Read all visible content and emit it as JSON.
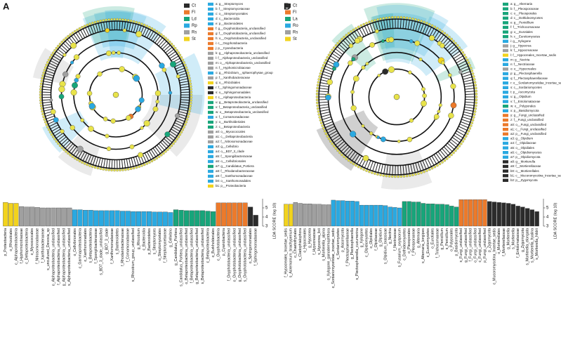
{
  "chart_data": [
    {
      "type": "bar",
      "panel": "A",
      "ylabel": "LDA SCORE (log 10)",
      "ylim": [
        3,
        6
      ],
      "yticks": [
        3,
        4,
        5
      ],
      "groups": [
        {
          "name": "Ct",
          "color": "#2b2b2b"
        },
        {
          "name": "Fl",
          "color": "#ec7a2b"
        },
        {
          "name": "Ld",
          "color": "#17a57a"
        },
        {
          "name": "Rp",
          "color": "#2aa9e1"
        },
        {
          "name": "Rs",
          "color": "#a0a0a0"
        },
        {
          "name": "St",
          "color": "#f2d31c"
        }
      ],
      "taxa": [
        {
          "label": "a: g__Streptomyces",
          "color": "#2aa9e1"
        },
        {
          "label": "b: f__Streptomycetaceae",
          "color": "#2aa9e1"
        },
        {
          "label": "c: o__Streptomycetales",
          "color": "#2aa9e1"
        },
        {
          "label": "d: c__Bacteroidia",
          "color": "#2aa9e1"
        },
        {
          "label": "e: p__Bacteroidetes",
          "color": "#2aa9e1"
        },
        {
          "label": "f: g__Oxyphotobacteria_unclassified",
          "color": "#ec7a2b"
        },
        {
          "label": "g: f__Oxyphotobacteria_unclassified",
          "color": "#ec7a2b"
        },
        {
          "label": "h: o__Oxyphotobacteria_unclassified",
          "color": "#ec7a2b"
        },
        {
          "label": "i: c__Oxyphotobacteria",
          "color": "#ec7a2b"
        },
        {
          "label": "j: p__Cyanobacteria",
          "color": "#ec7a2b"
        },
        {
          "label": "k: g__Alphaproteobacteria_unclassified",
          "color": "#a0a0a0"
        },
        {
          "label": "l: f__Alphaproteobacteria_unclassified",
          "color": "#a0a0a0"
        },
        {
          "label": "m: o__Alphaproteobacteria_unclassified",
          "color": "#a0a0a0"
        },
        {
          "label": "n: f__Hyphomicrobiaceae",
          "color": "#a0a0a0"
        },
        {
          "label": "o: g__Rhizobium__sphaerophysae_group",
          "color": "#2aa9e1"
        },
        {
          "label": "p: f__Xanthobacteraceae",
          "color": "#a0a0a0"
        },
        {
          "label": "q: o__Rhizobiales",
          "color": "#f2d31c"
        },
        {
          "label": "r: f__Sphingomonadaceae",
          "color": "#2b2b2b"
        },
        {
          "label": "s: o__Sphingomonadales",
          "color": "#2b2b2b"
        },
        {
          "label": "t: c__Alphaproteobacteria",
          "color": "#f2d31c"
        },
        {
          "label": "u: g__Betaproteobacteria_unclassified",
          "color": "#17a57a"
        },
        {
          "label": "v: f__Betaproteobacteria_unclassified",
          "color": "#17a57a"
        },
        {
          "label": "w: o__Betaproteobacteria_unclassified",
          "color": "#17a57a"
        },
        {
          "label": "x: f__Comamonadaceae",
          "color": "#2aa9e1"
        },
        {
          "label": "y: o__Burkholderiales",
          "color": "#17a57a"
        },
        {
          "label": "z: c__Betaproteobacteria",
          "color": "#17a57a"
        },
        {
          "label": "a0: o__Myxococcales",
          "color": "#a0a0a0"
        },
        {
          "label": "a1: c__Deltaproteobacteria",
          "color": "#a0a0a0"
        },
        {
          "label": "a2: f__Nitrosomonadaceae",
          "color": "#a0a0a0"
        },
        {
          "label": "a3: g__Cellvibrio",
          "color": "#2aa9e1"
        },
        {
          "label": "a4: o__BD7_3_clade",
          "color": "#2aa9e1"
        },
        {
          "label": "a5: f__Spongiibacteraceae",
          "color": "#2aa9e1"
        },
        {
          "label": "a6: o__Cellvibrionales",
          "color": "#2aa9e1"
        },
        {
          "label": "a7: g__Candidatus_Portiera",
          "color": "#17a57a"
        },
        {
          "label": "a8: f__Rhodanobacteraceae",
          "color": "#2aa9e1"
        },
        {
          "label": "a9: f__Xanthomonadaceae",
          "color": "#2aa9e1"
        },
        {
          "label": "b0: o__Xanthomonadales",
          "color": "#2aa9e1"
        },
        {
          "label": "b1: p__Proteobacteria",
          "color": "#f2d31c"
        }
      ],
      "categories": [
        "p_Proteobacteria",
        "o_Rhizobiales",
        "c_Alphaproteobacteria",
        "f_Hyphomicrobiaceae",
        "c_Deltaproteobacteria",
        "o_Myxococcales",
        "f_Nitrosomonadaceae",
        "f_Xanthobacteraceae",
        "s_uncultured_Devosia_sp",
        "o_Alphaproteobacteria_unclassified",
        "f_Alphaproteobacteria_unclassified",
        "g_Alphaproteobacteria_unclassified",
        "s_Alphaproteobacteria_unclassified",
        "o_Cellvibrionales",
        "c_Gammaproteobacteria",
        "o_Xanthomonadales",
        "s_Betaproteobacteria",
        "f_Spongiibacteraceae",
        "s_BD7_3_clade_unclassified",
        "g_BD7_3_clade",
        "f_Xanthomonadaceae",
        "s_Bacteroidetes",
        "f_Rhodanobacteraceae",
        "f_Comamonadaceae",
        "s_Rhizobium_group_unclassified",
        "g_Rhizobium",
        "c_Bacteroidia",
        "p_Bacteroidetes",
        "s_Streptomyces",
        "o_Streptomycetales",
        "f_Streptomycetaceae",
        "g_Cellvibrio",
        "g_Candidatus_Portiera",
        "s_Candidatus_Portiera_unclassified",
        "o_Betaproteobacteria_unclassified",
        "f_Betaproteobacteria_unclassified",
        "g_Betaproteobacteria_unclassified",
        "s_Betaproteobacteria_unclassified",
        "c_Betaproteobacteria",
        "o_Burkholderiales",
        "c_Oxyphotobacteria",
        "p_Cyanobacteria",
        "f_Oxyphotobacteria_unclassified",
        "o_Oxyphotobacteria_unclassified",
        "g_Oxyphotobacteria_unclassified",
        "s_Oxyphotobacteria_unclassified",
        "o_Sphingomonadales",
        "f_Sphingomonadaceae"
      ],
      "values": [
        5.6,
        5.5,
        5.5,
        5.15,
        5.1,
        5.1,
        5.05,
        5.0,
        5.0,
        5.0,
        5.0,
        5.0,
        5.0,
        4.8,
        4.8,
        4.75,
        4.75,
        4.7,
        4.7,
        4.7,
        4.7,
        4.7,
        4.65,
        4.65,
        4.6,
        4.6,
        4.6,
        4.6,
        4.55,
        4.55,
        4.55,
        4.5,
        4.8,
        4.75,
        4.7,
        4.7,
        4.7,
        4.7,
        4.65,
        4.6,
        5.55,
        5.55,
        5.55,
        5.55,
        5.55,
        5.55,
        5.1,
        4.2
      ],
      "colors": [
        "#f2d31c",
        "#f2d31c",
        "#f2d31c",
        "#a0a0a0",
        "#a0a0a0",
        "#a0a0a0",
        "#a0a0a0",
        "#a0a0a0",
        "#a0a0a0",
        "#a0a0a0",
        "#a0a0a0",
        "#a0a0a0",
        "#a0a0a0",
        "#2aa9e1",
        "#2aa9e1",
        "#2aa9e1",
        "#2aa9e1",
        "#2aa9e1",
        "#2aa9e1",
        "#2aa9e1",
        "#2aa9e1",
        "#2aa9e1",
        "#2aa9e1",
        "#2aa9e1",
        "#2aa9e1",
        "#2aa9e1",
        "#2aa9e1",
        "#2aa9e1",
        "#2aa9e1",
        "#2aa9e1",
        "#2aa9e1",
        "#2aa9e1",
        "#17a57a",
        "#17a57a",
        "#17a57a",
        "#17a57a",
        "#17a57a",
        "#17a57a",
        "#17a57a",
        "#17a57a",
        "#ec7a2b",
        "#ec7a2b",
        "#ec7a2b",
        "#ec7a2b",
        "#ec7a2b",
        "#ec7a2b",
        "#2b2b2b",
        "#2b2b2b"
      ]
    },
    {
      "type": "bar",
      "panel": "B",
      "ylabel": "LDA SCORE (log 10)",
      "ylim": [
        3,
        6
      ],
      "yticks": [
        3,
        4,
        5
      ],
      "groups": [
        {
          "name": "Ct",
          "color": "#2b2b2b"
        },
        {
          "name": "Fl",
          "color": "#ec7a2b"
        },
        {
          "name": "La",
          "color": "#17a57a"
        },
        {
          "name": "Ro",
          "color": "#2aa9e1"
        },
        {
          "name": "Rs",
          "color": "#a0a0a0"
        },
        {
          "name": "St",
          "color": "#f2d31c"
        }
      ],
      "taxa": [
        {
          "label": "a: g__Alternaria",
          "color": "#17a57a"
        },
        {
          "label": "b: f__Pleosporaceae",
          "color": "#17a57a"
        },
        {
          "label": "c: o__Pleosporales",
          "color": "#17a57a"
        },
        {
          "label": "d: c__Dothideomycetes",
          "color": "#17a57a"
        },
        {
          "label": "e: g__Penicillium",
          "color": "#17a57a"
        },
        {
          "label": "f: f__Trichocomaceae",
          "color": "#17a57a"
        },
        {
          "label": "g: o__Eurotiales",
          "color": "#17a57a"
        },
        {
          "label": "h: c__Eurotiomycetes",
          "color": "#17a57a"
        },
        {
          "label": "i: g__Xylogone",
          "color": "#2aa9e1"
        },
        {
          "label": "j: g__Hypocrea",
          "color": "#a0a0a0"
        },
        {
          "label": "k: f__Hypocreaceae",
          "color": "#a0a0a0"
        },
        {
          "label": "l: f__Hypocreales_Incertae_sedis",
          "color": "#f2d31c"
        },
        {
          "label": "m: g__Nectria",
          "color": "#2aa9e1"
        },
        {
          "label": "n: f__Nectriaceae",
          "color": "#2aa9e1"
        },
        {
          "label": "o: o__Hypocreales",
          "color": "#a0a0a0"
        },
        {
          "label": "p: g__Plectosphaerella",
          "color": "#2aa9e1"
        },
        {
          "label": "q: f__Plectosphaerellaceae",
          "color": "#2aa9e1"
        },
        {
          "label": "r: o__Sordariomycetidae_incertae_sedis",
          "color": "#2aa9e1"
        },
        {
          "label": "s: c__Sordariomycetes",
          "color": "#2aa9e1"
        },
        {
          "label": "t: p__Ascomycota",
          "color": "#2aa9e1"
        },
        {
          "label": "u: g__Olpidium",
          "color": "#2aa9e1"
        },
        {
          "label": "v: f__Entolomataceae",
          "color": "#2aa9e1"
        },
        {
          "label": "w: o__Polyporales",
          "color": "#17a57a"
        },
        {
          "label": "x: p__Basidiomycota",
          "color": "#2aa9e1"
        },
        {
          "label": "y: g__Fungi_unclassified",
          "color": "#ec7a2b"
        },
        {
          "label": "z: f__Fungi_unclassified",
          "color": "#ec7a2b"
        },
        {
          "label": "a0: o__Fungi_unclassified",
          "color": "#ec7a2b"
        },
        {
          "label": "a1: c__Fungi_unclassified",
          "color": "#ec7a2b"
        },
        {
          "label": "a2: p__Fungi_unclassified",
          "color": "#ec7a2b"
        },
        {
          "label": "a3: g__Olpidium",
          "color": "#2aa9e1"
        },
        {
          "label": "a4: f__Olpidiaceae",
          "color": "#2aa9e1"
        },
        {
          "label": "a5: o__Olpidiales",
          "color": "#2aa9e1"
        },
        {
          "label": "a6: c__Olpidiomycetes",
          "color": "#2aa9e1"
        },
        {
          "label": "a7: p__Olpidiomycota",
          "color": "#2aa9e1"
        },
        {
          "label": "a8: g__Mortierella",
          "color": "#2b2b2b"
        },
        {
          "label": "a9: f__Mortierellaceae",
          "color": "#2b2b2b"
        },
        {
          "label": "b0: o__Mortierellales",
          "color": "#2b2b2b"
        },
        {
          "label": "b1: c__Mucoromycotina_Incertae_sedis",
          "color": "#2b2b2b"
        },
        {
          "label": "b2: p__Zygomycota",
          "color": "#2b2b2b"
        }
      ],
      "categories": [
        "f_Hypocreales_Incertae_sedis",
        "s_Acremonium_brachypenium",
        "o_Chaetothyriales",
        "s_Cladophialophora",
        "o_Hypocreales",
        "g_Hypocrea",
        "f_Hypocreaceae",
        "s_Hypocrea_lixii",
        "s_Mortierella_alpina",
        "s_Xylogone_ganodermophthora",
        "o_Sordariomycetidae_incertae_sedis",
        "c_Sordariomycetes",
        "p_Ascomycota",
        "f_Plectosphaerellaceae",
        "g_Plectosphaerella",
        "s_Plectosphaerella_cucumerina",
        "g_Xylogone",
        "c_Olpidiomycetes",
        "o_Olpidiales",
        "f_Olpidiaceae",
        "g_Olpidium",
        "s_Olpidium_brassicae",
        "g_Nectria",
        "f_Nectriaceae",
        "s_Fusarium_oxysporum",
        "c_Dothideomycetes",
        "o_Pleosporales",
        "f_Pleosporaceae",
        "g_Alternaria",
        "s_Alternaria_longipes",
        "c_Eurotiomycetes",
        "o_Eurotiales",
        "f_Trichocomaceae",
        "g_Penicillium",
        "s_Penicillium",
        "o_Polyporales",
        "p_Basidiomycota",
        "s_Fungi_unclassified",
        "g_Fungi_unclassified",
        "f_Fungi_unclassified",
        "o_Fungi_unclassified",
        "c_Fungi_unclassified",
        "p_Fungi_unclassified",
        "p_Zygomycota",
        "c_Mucoromycotina_Incertae_sedis",
        "o_Mortierellales",
        "f_Mortierellaceae",
        "g_Mortierella",
        "s_Mortierella",
        "f_Entolomataceae",
        "g_Zygomycota",
        "s_Mortierella_elongata",
        "s_Mortierella_hyalina",
        "s_Mortierella_hildrii"
      ],
      "values": [
        5.4,
        5.4,
        5.6,
        5.5,
        5.45,
        5.45,
        5.4,
        5.4,
        5.35,
        5.35,
        5.85,
        5.8,
        5.8,
        5.75,
        5.75,
        5.7,
        5.3,
        5.3,
        5.3,
        5.3,
        5.3,
        5.25,
        5.1,
        5.05,
        5.0,
        5.7,
        5.7,
        5.65,
        5.65,
        5.5,
        5.45,
        5.45,
        5.4,
        5.4,
        5.35,
        5.2,
        5.1,
        5.9,
        5.9,
        5.9,
        5.9,
        5.9,
        5.9,
        5.7,
        5.65,
        5.6,
        5.55,
        5.5,
        5.4,
        5.2,
        5.1,
        4.95,
        4.8,
        4.6
      ],
      "colors": [
        "#f2d31c",
        "#f2d31c",
        "#a0a0a0",
        "#a0a0a0",
        "#a0a0a0",
        "#a0a0a0",
        "#a0a0a0",
        "#a0a0a0",
        "#a0a0a0",
        "#a0a0a0",
        "#2aa9e1",
        "#2aa9e1",
        "#2aa9e1",
        "#2aa9e1",
        "#2aa9e1",
        "#2aa9e1",
        "#2aa9e1",
        "#2aa9e1",
        "#2aa9e1",
        "#2aa9e1",
        "#2aa9e1",
        "#2aa9e1",
        "#2aa9e1",
        "#2aa9e1",
        "#2aa9e1",
        "#17a57a",
        "#17a57a",
        "#17a57a",
        "#17a57a",
        "#17a57a",
        "#17a57a",
        "#17a57a",
        "#17a57a",
        "#17a57a",
        "#17a57a",
        "#17a57a",
        "#17a57a",
        "#ec7a2b",
        "#ec7a2b",
        "#ec7a2b",
        "#ec7a2b",
        "#ec7a2b",
        "#ec7a2b",
        "#2b2b2b",
        "#2b2b2b",
        "#2b2b2b",
        "#2b2b2b",
        "#2b2b2b",
        "#2b2b2b",
        "#2b2b2b",
        "#2b2b2b",
        "#2b2b2b",
        "#2b2b2b",
        "#2b2b2b"
      ]
    }
  ]
}
